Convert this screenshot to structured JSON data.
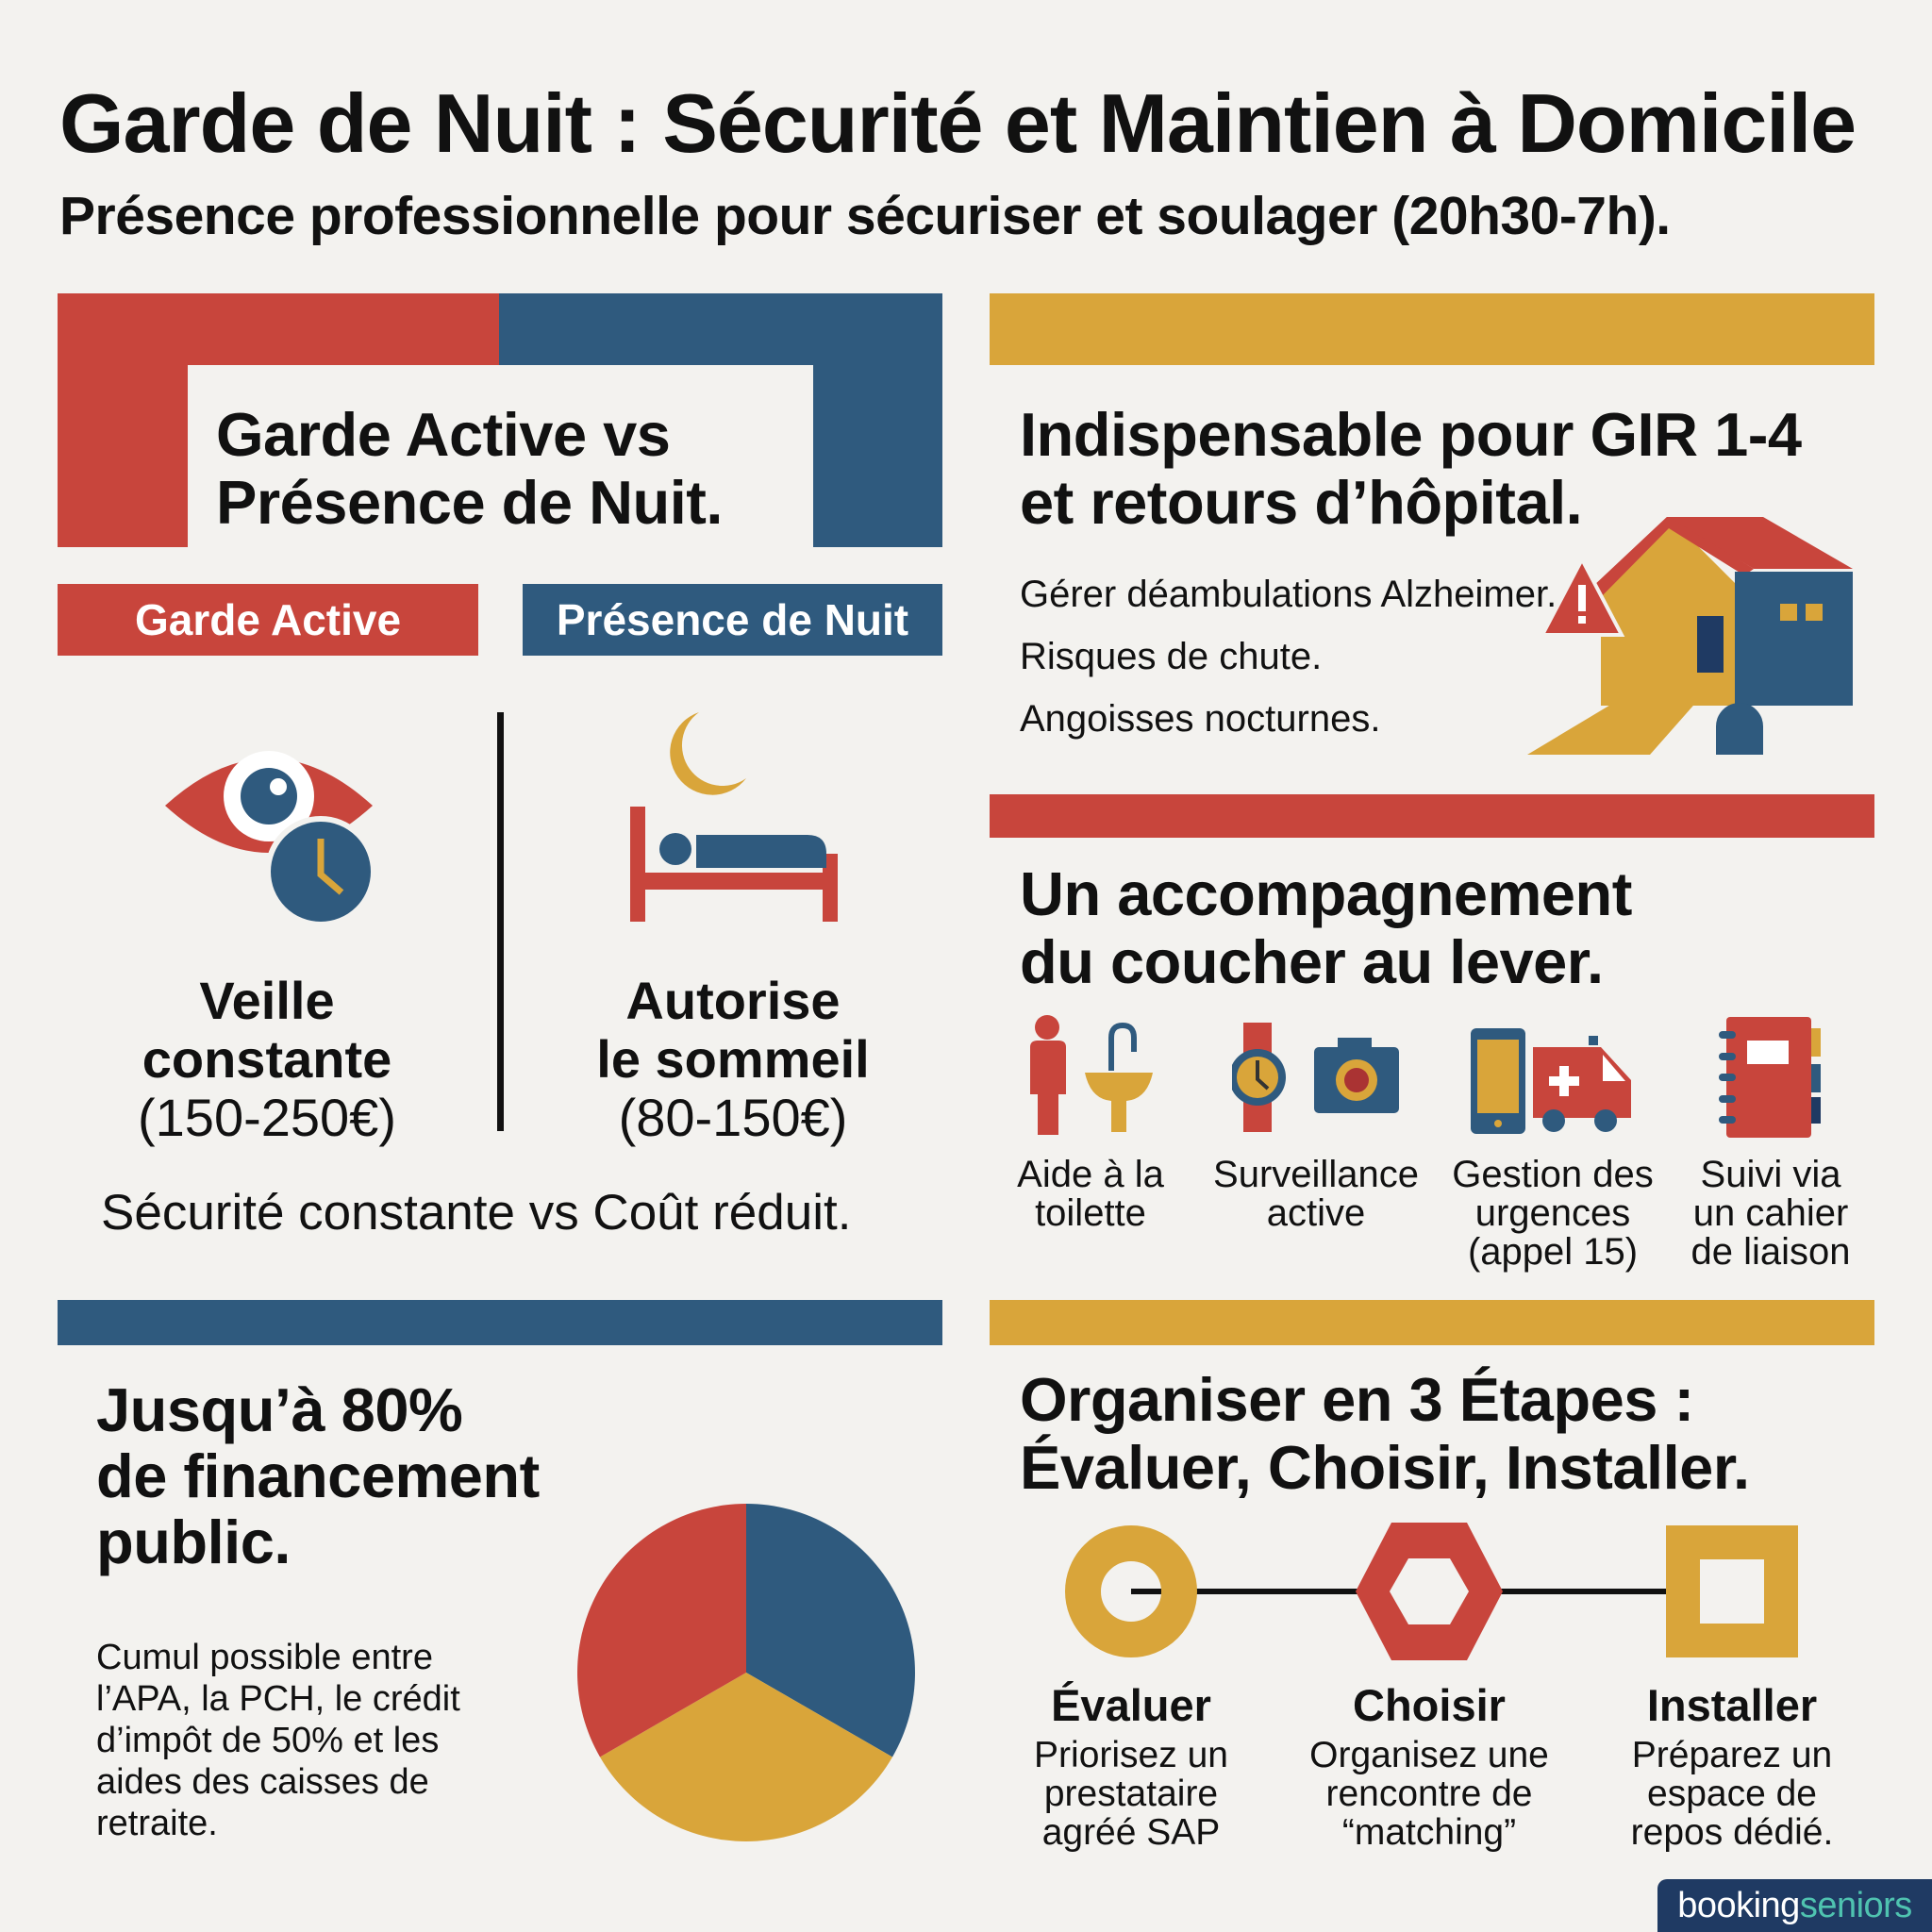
{
  "header": {
    "title": "Garde de Nuit : Sécurité et Maintien à Domicile",
    "subtitle": "Présence professionnelle pour sécuriser et soulager (20h30-7h)."
  },
  "comparison": {
    "heading_line1": "Garde Active vs",
    "heading_line2": "Présence de Nuit.",
    "tag_active": "Garde Active",
    "tag_presence": "Présence de Nuit",
    "active": {
      "line1": "Veille",
      "line2": "constante",
      "price": "(150-250€)"
    },
    "presence": {
      "line1": "Autorise",
      "line2": "le sommeil",
      "price": "(80-150€)"
    },
    "summary": "Sécurité constante vs Coût réduit."
  },
  "indispensable": {
    "heading_line1": "Indispensable pour GIR 1-4",
    "heading_line2": "et retours d’hôpital.",
    "items": [
      "Gérer déambulations Alzheimer.",
      "Risques de chute.",
      "Angoisses nocturnes."
    ]
  },
  "accompagnement": {
    "heading_line1": "Un accompagnement",
    "heading_line2": "du coucher au lever.",
    "services": [
      {
        "l1": "Aide à la",
        "l2": "toilette",
        "l3": ""
      },
      {
        "l1": "Surveillance",
        "l2": "active",
        "l3": ""
      },
      {
        "l1": "Gestion des",
        "l2": "urgences",
        "l3": "(appel 15)"
      },
      {
        "l1": "Suivi via",
        "l2": "un cahier",
        "l3": "de liaison"
      }
    ]
  },
  "financement": {
    "heading_line1": "Jusqu’à 80%",
    "heading_line2": "de financement",
    "heading_line3": "public.",
    "body": [
      "Cumul possible entre",
      "l’APA, la PCH, le crédit",
      "d’impôt de 50% et les",
      "aides des caisses de",
      "retraite."
    ]
  },
  "etapes": {
    "heading_line1": "Organiser en 3 Étapes :",
    "heading_line2": "Évaluer, Choisir, Installer.",
    "steps": [
      {
        "title": "Évaluer",
        "d1": "Priorisez un",
        "d2": "prestataire",
        "d3": "agréé SAP"
      },
      {
        "title": "Choisir",
        "d1": "Organisez une",
        "d2": "rencontre de",
        "d3": "“matching”"
      },
      {
        "title": "Installer",
        "d1": "Préparez un",
        "d2": "espace de",
        "d3": "repos dédié."
      }
    ]
  },
  "logo": {
    "part1": "booking",
    "part2": "seniors"
  },
  "colors": {
    "red": "#c8453c",
    "blue": "#2f5a7e",
    "yellow": "#d9a53a",
    "logo_bg": "#1f3a63",
    "logo_accent": "#4fc3b0"
  }
}
